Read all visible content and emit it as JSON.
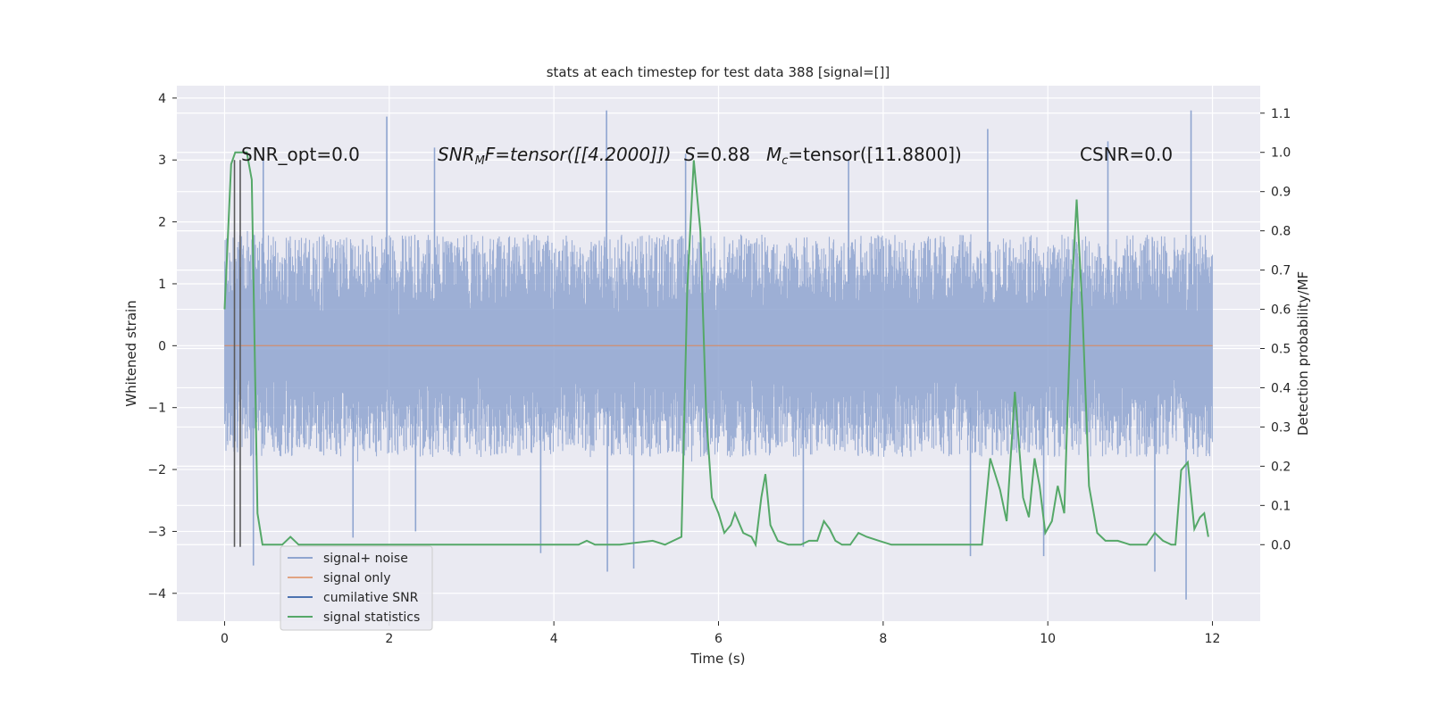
{
  "chart_data": {
    "type": "line",
    "title": "stats at each timestep for test data 388 [signal=[]]",
    "xlabel": "Time (s)",
    "ylabel": "Whitened strain",
    "y2label": "Detection probability/MF",
    "xlim": [
      -0.58,
      12.58
    ],
    "ylim": [
      -4.45,
      4.2
    ],
    "y2lim": [
      -0.195,
      1.17
    ],
    "xticks": [
      0,
      2,
      4,
      6,
      8,
      10,
      12
    ],
    "yticks": [
      -4,
      -3,
      -2,
      -1,
      0,
      1,
      2,
      3,
      4
    ],
    "y2ticks": [
      "0.0",
      "0.1",
      "0.2",
      "0.3",
      "0.4",
      "0.5",
      "0.6",
      "0.7",
      "0.8",
      "0.9",
      "1.0",
      "1.1"
    ],
    "grid": true,
    "legend_position": "lower-left",
    "annotations": {
      "snr_opt": "SNR_opt=0.0",
      "snr_mf_prefix": "SNR",
      "snr_mf_sub": "M",
      "snr_mf_rest": "F=tensor([[4.2000]])",
      "s_label": "S",
      "s_value": "=0.88",
      "mc_label": "M",
      "mc_sub": "c",
      "mc_value": "=tensor([11.8800])",
      "csnr": "CSNR=0.0"
    },
    "series": [
      {
        "name": "signal+ noise",
        "color": "#8fa5d0",
        "axis": "left",
        "x_range": [
          0,
          12
        ],
        "envelope_upper": 2.3,
        "envelope_lower": -2.2,
        "peaks": [
          {
            "x": 1.97,
            "y": 3.7
          },
          {
            "x": 4.64,
            "y": 3.8
          },
          {
            "x": 11.74,
            "y": 3.8
          },
          {
            "x": 9.27,
            "y": 3.5
          },
          {
            "x": 5.6,
            "y": 3.1
          },
          {
            "x": 2.55,
            "y": 3.2
          },
          {
            "x": 0.47,
            "y": 3.2
          },
          {
            "x": 10.73,
            "y": 3.3
          },
          {
            "x": 7.58,
            "y": 3.0
          },
          {
            "x": 11.68,
            "y": -4.1
          },
          {
            "x": 0.35,
            "y": -3.55
          },
          {
            "x": 4.65,
            "y": -3.65
          },
          {
            "x": 4.97,
            "y": -3.6
          },
          {
            "x": 3.84,
            "y": -3.35
          },
          {
            "x": 9.06,
            "y": -3.4
          },
          {
            "x": 11.3,
            "y": -3.65
          },
          {
            "x": 1.56,
            "y": -3.1
          },
          {
            "x": 7.03,
            "y": -3.25
          },
          {
            "x": 9.95,
            "y": -3.4
          },
          {
            "x": 2.32,
            "y": -3.0
          }
        ]
      },
      {
        "name": "signal only",
        "color": "#dd8452",
        "axis": "left",
        "x": [
          0,
          12
        ],
        "y": [
          0,
          0
        ]
      },
      {
        "name": "cumilative SNR",
        "color": "#4c72b0",
        "axis": "left",
        "x": [],
        "y": []
      },
      {
        "name": "signal statistics",
        "color": "#55a868",
        "axis": "right",
        "x": [
          0.0,
          0.08,
          0.13,
          0.2,
          0.27,
          0.33,
          0.4,
          0.46,
          0.6,
          0.7,
          0.8,
          0.9,
          1.0,
          1.2,
          1.5,
          1.8,
          2.0,
          2.5,
          3.0,
          3.5,
          4.0,
          4.3,
          4.4,
          4.5,
          4.8,
          5.2,
          5.35,
          5.45,
          5.55,
          5.62,
          5.7,
          5.78,
          5.85,
          5.92,
          6.0,
          6.07,
          6.15,
          6.2,
          6.3,
          6.4,
          6.45,
          6.52,
          6.57,
          6.63,
          6.72,
          6.85,
          7.0,
          7.1,
          7.2,
          7.28,
          7.35,
          7.42,
          7.5,
          7.6,
          7.7,
          7.8,
          7.95,
          8.1,
          8.3,
          8.6,
          9.0,
          9.2,
          9.3,
          9.42,
          9.5,
          9.6,
          9.7,
          9.77,
          9.84,
          9.9,
          9.97,
          10.05,
          10.12,
          10.2,
          10.28,
          10.35,
          10.42,
          10.5,
          10.6,
          10.7,
          10.85,
          11.0,
          11.2,
          11.3,
          11.4,
          11.5,
          11.55,
          11.62,
          11.7,
          11.78,
          11.85,
          11.9,
          11.95
        ],
        "y": [
          0.6,
          0.97,
          1.0,
          1.0,
          1.0,
          0.93,
          0.08,
          0.0,
          0.0,
          0.0,
          0.02,
          0.0,
          0.0,
          0.0,
          0.0,
          0.0,
          0.0,
          0.0,
          0.0,
          0.0,
          0.0,
          0.0,
          0.01,
          0.0,
          0.0,
          0.01,
          0.0,
          0.01,
          0.02,
          0.65,
          0.98,
          0.8,
          0.33,
          0.12,
          0.08,
          0.03,
          0.05,
          0.08,
          0.03,
          0.02,
          0.0,
          0.12,
          0.18,
          0.05,
          0.01,
          0.0,
          0.0,
          0.01,
          0.01,
          0.06,
          0.04,
          0.01,
          0.0,
          0.0,
          0.03,
          0.02,
          0.01,
          0.0,
          0.0,
          0.0,
          0.0,
          0.0,
          0.22,
          0.14,
          0.06,
          0.39,
          0.12,
          0.07,
          0.22,
          0.15,
          0.03,
          0.06,
          0.15,
          0.08,
          0.6,
          0.88,
          0.6,
          0.15,
          0.03,
          0.01,
          0.01,
          0.0,
          0.0,
          0.03,
          0.01,
          0.0,
          0.0,
          0.19,
          0.21,
          0.04,
          0.07,
          0.08,
          0.02
        ]
      }
    ],
    "vertical_lines": [
      {
        "x": 0.12,
        "y_from": -3.25,
        "y_to": 3.0,
        "color": "#5a5a5a"
      },
      {
        "x": 0.19,
        "y_from": -3.25,
        "y_to": 3.0,
        "color": "#5a5a5a"
      }
    ],
    "style": {
      "plot_background": "#eaeaf2",
      "grid_color": "#ffffff"
    }
  }
}
